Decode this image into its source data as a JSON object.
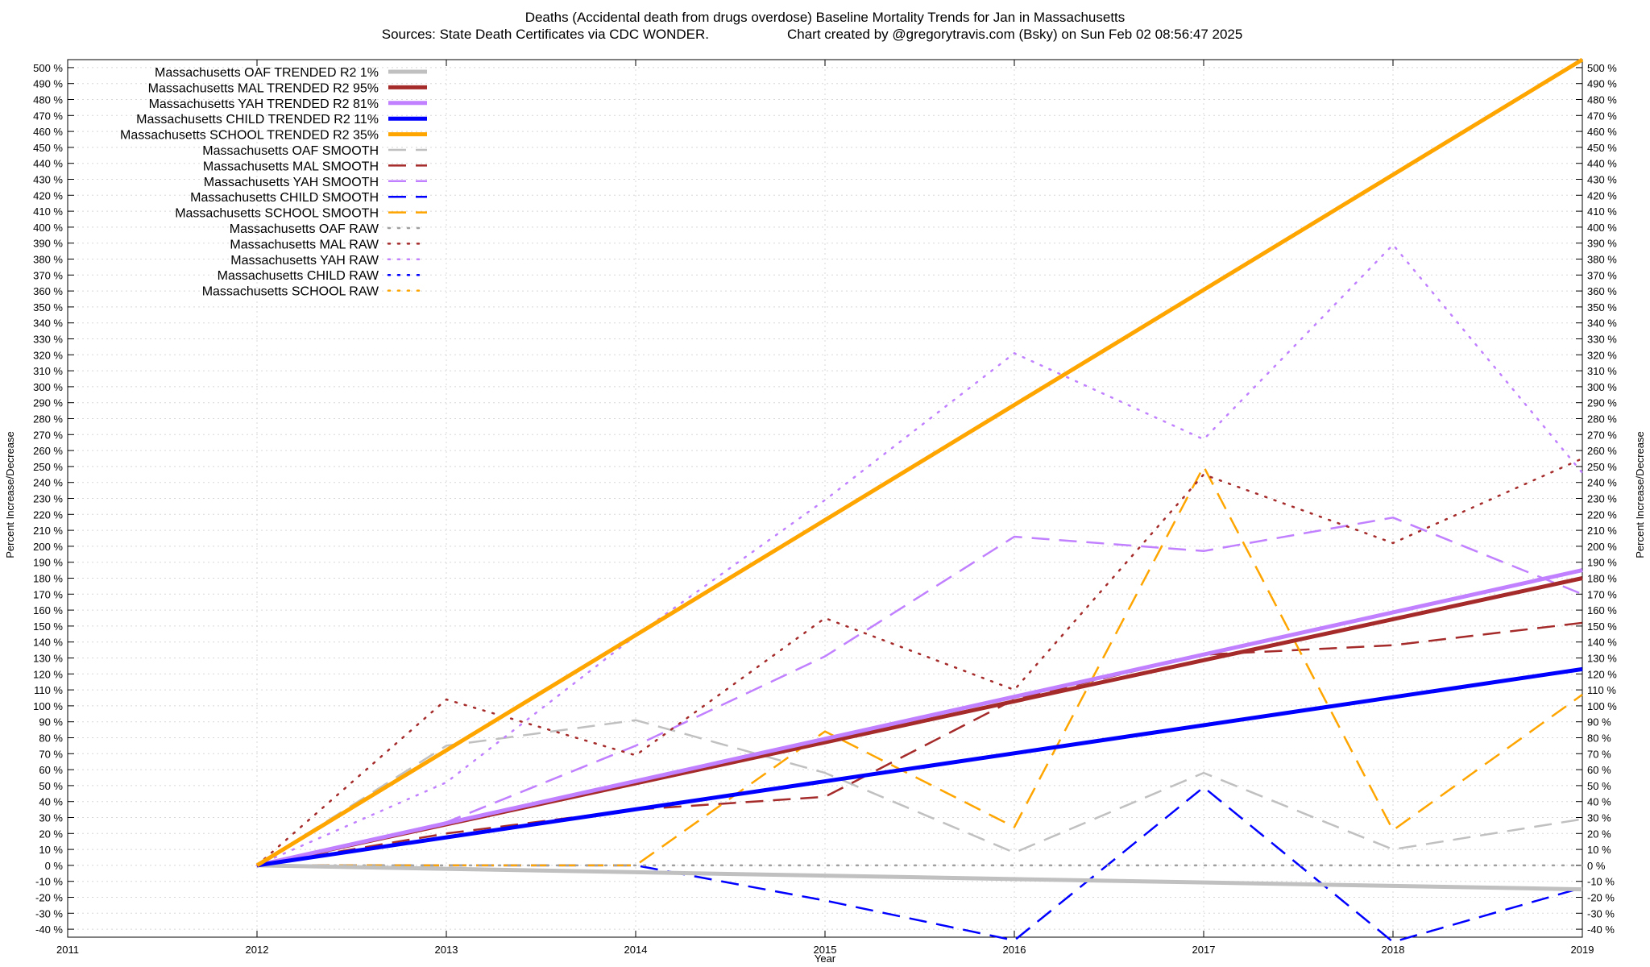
{
  "chart_data": {
    "type": "line",
    "title": "Deaths (Accidental death from drugs overdose)  Baseline Mortality Trends for Jan in Massachusetts",
    "subtitle_left": "Sources: State Death Certificates via CDC WONDER.",
    "subtitle_right": "Chart created by @gregorytravis.com (Bsky) on Sun Feb 02 08:56:47 2025",
    "xlabel": "Year",
    "ylabel": "Percent Increase/Decrease",
    "xlim": [
      2011,
      2019
    ],
    "ylim": [
      -45,
      505
    ],
    "x_ticks": [
      2011,
      2012,
      2013,
      2014,
      2015,
      2016,
      2017,
      2018,
      2019
    ],
    "y_tick_step": 10,
    "y_tick_min": -40,
    "y_tick_max": 500,
    "y_tick_suffix": " %",
    "grid": true,
    "legend_position": "top-left",
    "series": [
      {
        "name": "Massachusetts OAF TRENDED R2  1%",
        "style": "trend",
        "color": "#c0c0c0",
        "x": [
          2012,
          2019
        ],
        "values": [
          0,
          -15
        ]
      },
      {
        "name": "Massachusetts MAL TRENDED R2  95%",
        "style": "trend",
        "color": "#a52a2a",
        "x": [
          2012,
          2019
        ],
        "values": [
          0,
          180
        ]
      },
      {
        "name": "Massachusetts YAH TRENDED R2  81%",
        "style": "trend",
        "color": "#c080ff",
        "x": [
          2012,
          2019
        ],
        "values": [
          0,
          185
        ]
      },
      {
        "name": "Massachusetts CHILD TRENDED R2  11%",
        "style": "trend",
        "color": "#0000ff",
        "x": [
          2012,
          2019
        ],
        "values": [
          0,
          123
        ]
      },
      {
        "name": "Massachusetts SCHOOL TRENDED R2  35%",
        "style": "trend",
        "color": "#ffa500",
        "x": [
          2012,
          2019
        ],
        "values": [
          0,
          505
        ]
      },
      {
        "name": "Massachusetts OAF SMOOTH",
        "style": "smooth",
        "color": "#c0c0c0",
        "x": [
          2012,
          2013,
          2014,
          2015,
          2016,
          2017,
          2018,
          2019
        ],
        "values": [
          0,
          75,
          91,
          58,
          8,
          58,
          10,
          29
        ]
      },
      {
        "name": "Massachusetts MAL SMOOTH",
        "style": "smooth",
        "color": "#a52a2a",
        "x": [
          2012,
          2013,
          2014,
          2015,
          2016,
          2017,
          2018,
          2019
        ],
        "values": [
          0,
          20,
          35,
          43,
          104,
          132,
          138,
          152
        ]
      },
      {
        "name": "Massachusetts YAH SMOOTH",
        "style": "smooth",
        "color": "#c080ff",
        "x": [
          2012,
          2013,
          2014,
          2015,
          2016,
          2017,
          2018,
          2019
        ],
        "values": [
          0,
          27,
          75,
          131,
          206,
          197,
          218,
          170
        ]
      },
      {
        "name": "Massachusetts CHILD SMOOTH",
        "style": "smooth",
        "color": "#0000ff",
        "x": [
          2012,
          2013,
          2014,
          2015,
          2016,
          2017,
          2018,
          2019
        ],
        "values": [
          0,
          0,
          0,
          -22,
          -47,
          49,
          -48,
          -14
        ]
      },
      {
        "name": "Massachusetts SCHOOL SMOOTH",
        "style": "smooth",
        "color": "#ffa500",
        "x": [
          2012,
          2013,
          2014,
          2015,
          2016,
          2017,
          2018,
          2019
        ],
        "values": [
          0,
          0,
          0,
          84,
          24,
          250,
          22,
          107
        ]
      },
      {
        "name": "Massachusetts OAF RAW",
        "style": "raw",
        "color": "#a0a0a0",
        "x": [
          2012,
          2013,
          2014,
          2015,
          2016,
          2017,
          2018,
          2019
        ],
        "values": [
          0,
          0,
          0,
          0,
          0,
          0,
          0,
          0
        ]
      },
      {
        "name": "Massachusetts MAL RAW",
        "style": "raw",
        "color": "#a52a2a",
        "x": [
          2012,
          2013,
          2014,
          2015,
          2016,
          2017,
          2018,
          2019
        ],
        "values": [
          0,
          104,
          69,
          155,
          110,
          245,
          202,
          255
        ]
      },
      {
        "name": "Massachusetts YAH RAW",
        "style": "raw",
        "color": "#c080ff",
        "x": [
          2012,
          2013,
          2014,
          2015,
          2016,
          2017,
          2018,
          2019
        ],
        "values": [
          0,
          52,
          144,
          229,
          321,
          267,
          389,
          246
        ]
      },
      {
        "name": "Massachusetts CHILD RAW",
        "style": "raw",
        "color": "#0000ff",
        "x": [],
        "values": []
      },
      {
        "name": "Massachusetts SCHOOL RAW",
        "style": "raw",
        "color": "#ffa500",
        "x": [],
        "values": []
      }
    ]
  }
}
